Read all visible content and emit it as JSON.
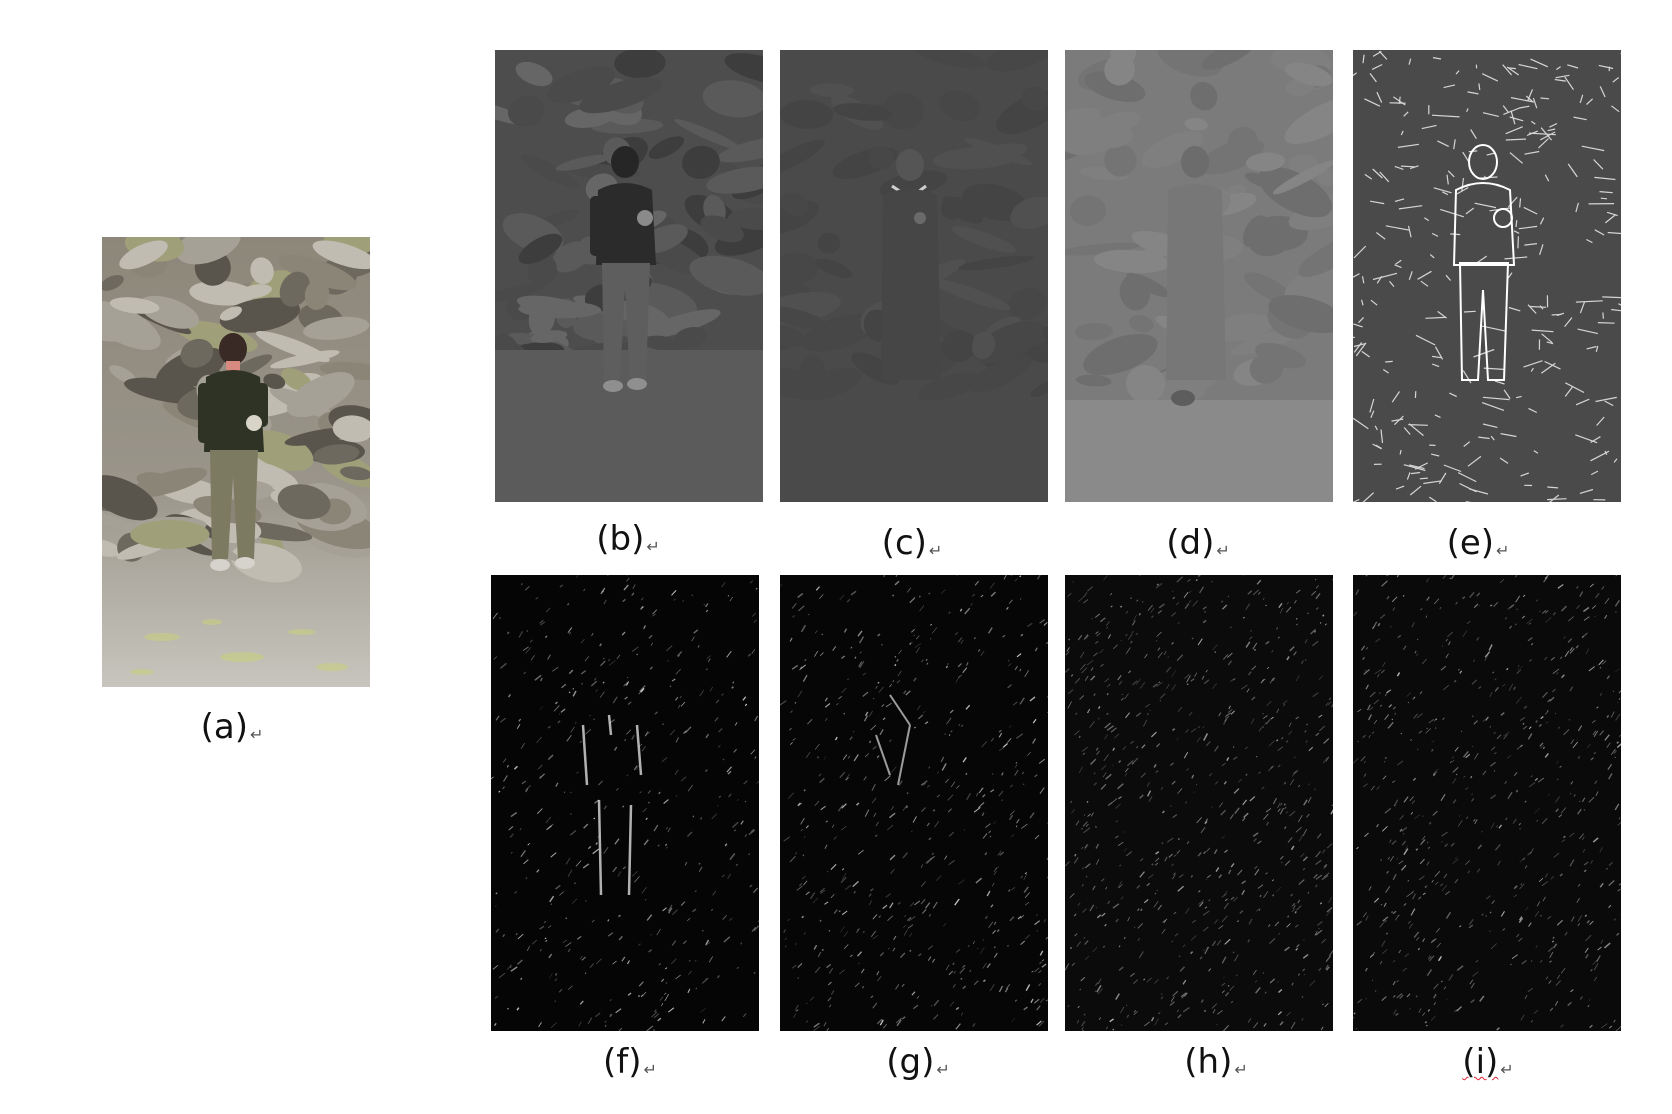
{
  "figure": {
    "panels": [
      {
        "id": "a",
        "label": "(a)",
        "kind": "color-photo"
      },
      {
        "id": "b",
        "label": "(b)",
        "kind": "grayscale-dim"
      },
      {
        "id": "c",
        "label": "(c)",
        "kind": "gray-flat"
      },
      {
        "id": "d",
        "label": "(d)",
        "kind": "gray-light"
      },
      {
        "id": "e",
        "label": "(e)",
        "kind": "edge-map"
      },
      {
        "id": "f",
        "label": "(f)",
        "kind": "dark-texture"
      },
      {
        "id": "g",
        "label": "(g)",
        "kind": "dark-texture"
      },
      {
        "id": "h",
        "label": "(h)",
        "kind": "dark-texture"
      },
      {
        "id": "i",
        "label": "(i)",
        "kind": "dark-texture"
      }
    ],
    "paragraph_mark": "↵",
    "colors": {
      "background": "#ffffff",
      "rock_light": "#b7b3a8",
      "rock_dark": "#5e5a52",
      "jacket": "#2f3326",
      "trousers": "#7d7a62",
      "lichen": "#c9d27a"
    }
  }
}
